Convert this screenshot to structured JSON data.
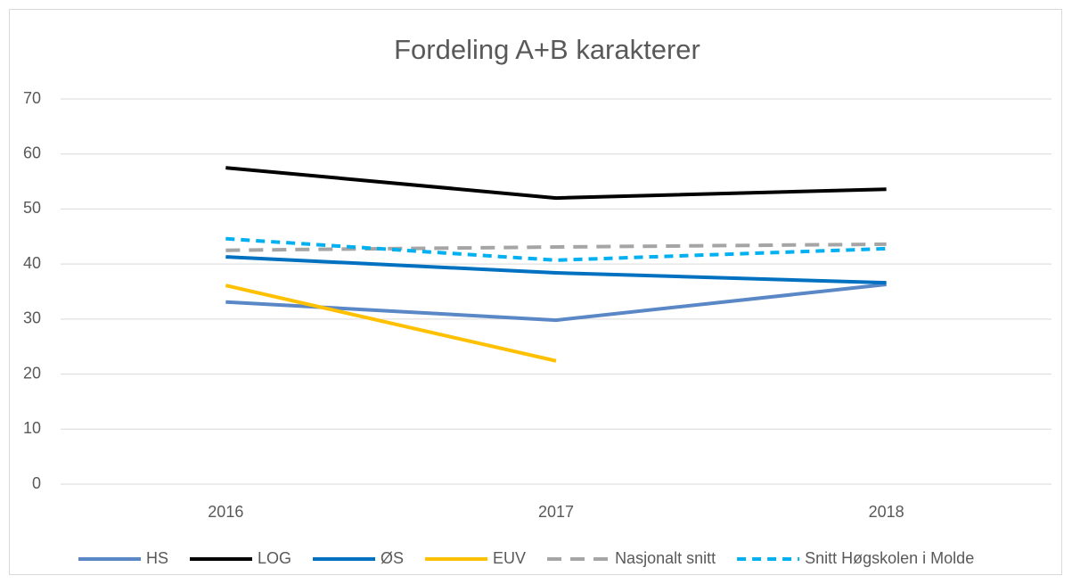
{
  "chart_data": {
    "type": "line",
    "title": "Fordeling A+B karakterer",
    "categories": [
      "2016",
      "2017",
      "2018"
    ],
    "series": [
      {
        "name": "HS",
        "color": "#5a87c5",
        "dashed": false,
        "values": [
          33.1,
          29.8,
          36.3
        ]
      },
      {
        "name": "LOG",
        "color": "#000000",
        "dashed": false,
        "values": [
          57.5,
          52.0,
          53.6
        ]
      },
      {
        "name": "ØS",
        "color": "#0070c0",
        "dashed": false,
        "values": [
          41.3,
          38.4,
          36.6
        ]
      },
      {
        "name": "EUV",
        "color": "#ffc000",
        "dashed": false,
        "values": [
          36.1,
          22.4,
          null
        ]
      },
      {
        "name": "Nasjonalt snitt",
        "color": "#a5a5a5",
        "dashed": true,
        "values": [
          42.5,
          43.1,
          43.6
        ]
      },
      {
        "name": "Snitt Høgskolen i Molde",
        "color": "#00b0f0",
        "dashed": true,
        "values": [
          44.6,
          40.7,
          42.8
        ]
      }
    ],
    "ylim": [
      0,
      70
    ],
    "yticks": [
      0,
      10,
      20,
      30,
      40,
      50,
      60,
      70
    ],
    "grid": true,
    "legend": "bottom"
  }
}
